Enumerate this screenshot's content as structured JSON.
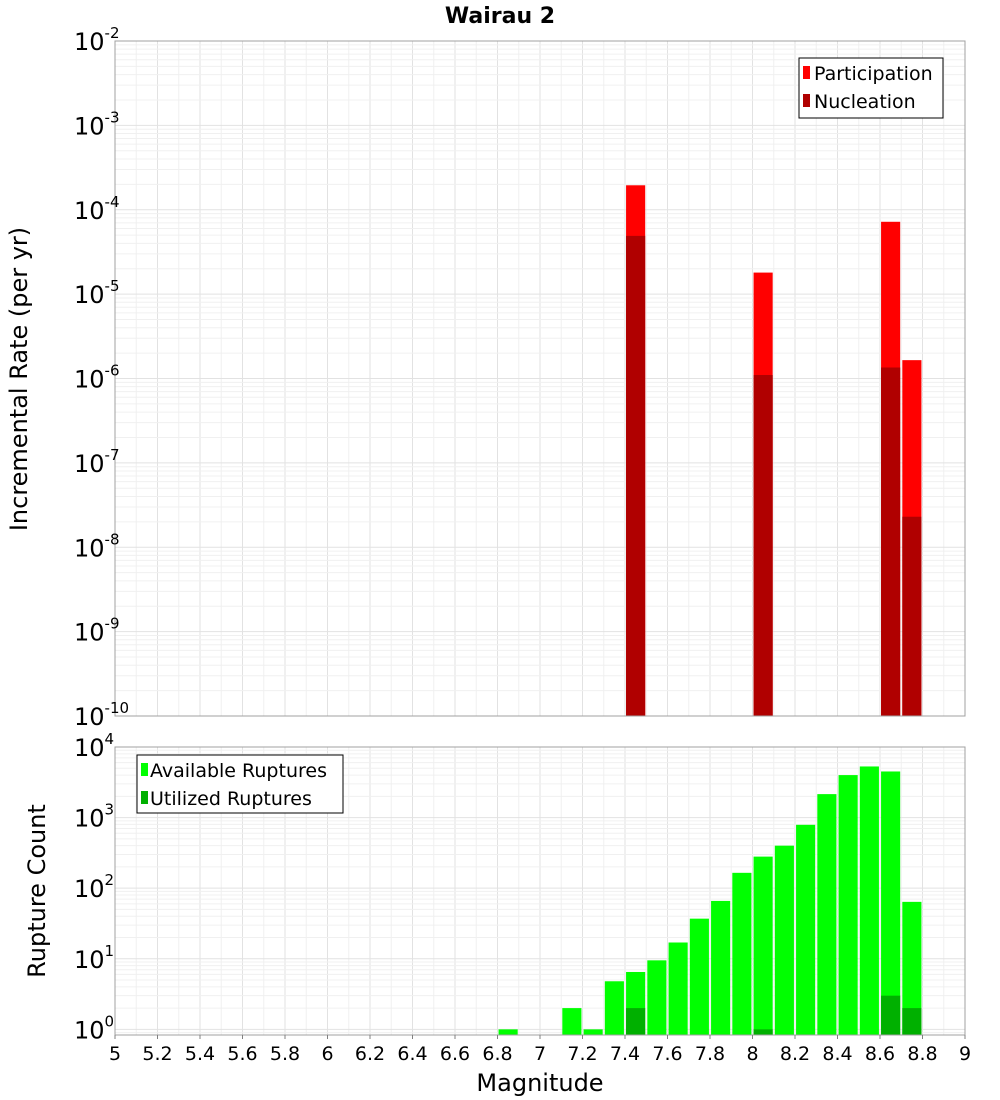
{
  "title": "Wairau 2",
  "chart_data": [
    {
      "type": "bar",
      "scale": "log",
      "ylabel": "Incremental Rate (per yr)",
      "ylim_exp": [
        -10,
        -2
      ],
      "y_ticks": [
        {
          "base": "10",
          "exp": "-10"
        },
        {
          "base": "10",
          "exp": "-9"
        },
        {
          "base": "10",
          "exp": "-8"
        },
        {
          "base": "10",
          "exp": "-7"
        },
        {
          "base": "10",
          "exp": "-6"
        },
        {
          "base": "10",
          "exp": "-5"
        },
        {
          "base": "10",
          "exp": "-4"
        },
        {
          "base": "10",
          "exp": "-3"
        },
        {
          "base": "10",
          "exp": "-2"
        }
      ],
      "legend_position": "top-right",
      "series": [
        {
          "name": "Participation",
          "color": "#ff0000",
          "points": [
            {
              "x": 7.45,
              "y": 0.000195
            },
            {
              "x": 8.05,
              "y": 1.8e-05
            },
            {
              "x": 8.65,
              "y": 7.2e-05
            },
            {
              "x": 8.75,
              "y": 1.65e-06
            }
          ]
        },
        {
          "name": "Nucleation",
          "color": "#b00000",
          "points": [
            {
              "x": 7.45,
              "y": 4.9e-05
            },
            {
              "x": 8.05,
              "y": 1.1e-06
            },
            {
              "x": 8.65,
              "y": 1.35e-06
            },
            {
              "x": 8.75,
              "y": 2.3e-08
            }
          ]
        }
      ]
    },
    {
      "type": "bar",
      "scale": "log",
      "ylabel": "Rupture Count",
      "xlabel": "Magnitude",
      "ylim_exp": [
        -0.08,
        4
      ],
      "y_ticks": [
        {
          "base": "10",
          "exp": "0"
        },
        {
          "base": "10",
          "exp": "1"
        },
        {
          "base": "10",
          "exp": "2"
        },
        {
          "base": "10",
          "exp": "3"
        },
        {
          "base": "10",
          "exp": "4"
        }
      ],
      "x_ticks": [
        "5",
        "5.2",
        "5.4",
        "5.6",
        "5.8",
        "6",
        "6.2",
        "6.4",
        "6.6",
        "6.8",
        "7",
        "7.2",
        "7.4",
        "7.6",
        "7.8",
        "8",
        "8.2",
        "8.4",
        "8.6",
        "8.8",
        "9"
      ],
      "xlim": [
        5,
        9
      ],
      "legend_position": "top-left",
      "series": [
        {
          "name": "Available Ruptures",
          "color": "#00ff00",
          "points": [
            {
              "x": 6.85,
              "y": 1
            },
            {
              "x": 7.15,
              "y": 2
            },
            {
              "x": 7.25,
              "y": 1
            },
            {
              "x": 7.35,
              "y": 4.8
            },
            {
              "x": 7.45,
              "y": 6.5
            },
            {
              "x": 7.55,
              "y": 9.5
            },
            {
              "x": 7.65,
              "y": 17
            },
            {
              "x": 7.75,
              "y": 37
            },
            {
              "x": 7.85,
              "y": 66
            },
            {
              "x": 7.95,
              "y": 165
            },
            {
              "x": 8.05,
              "y": 280
            },
            {
              "x": 8.15,
              "y": 400
            },
            {
              "x": 8.25,
              "y": 790
            },
            {
              "x": 8.35,
              "y": 2150
            },
            {
              "x": 8.45,
              "y": 4000
            },
            {
              "x": 8.55,
              "y": 5300
            },
            {
              "x": 8.65,
              "y": 4500
            },
            {
              "x": 8.75,
              "y": 64
            }
          ]
        },
        {
          "name": "Utilized Ruptures",
          "color": "#00b000",
          "points": [
            {
              "x": 7.45,
              "y": 2
            },
            {
              "x": 8.05,
              "y": 1
            },
            {
              "x": 8.65,
              "y": 3
            },
            {
              "x": 8.75,
              "y": 2
            }
          ]
        }
      ]
    }
  ]
}
